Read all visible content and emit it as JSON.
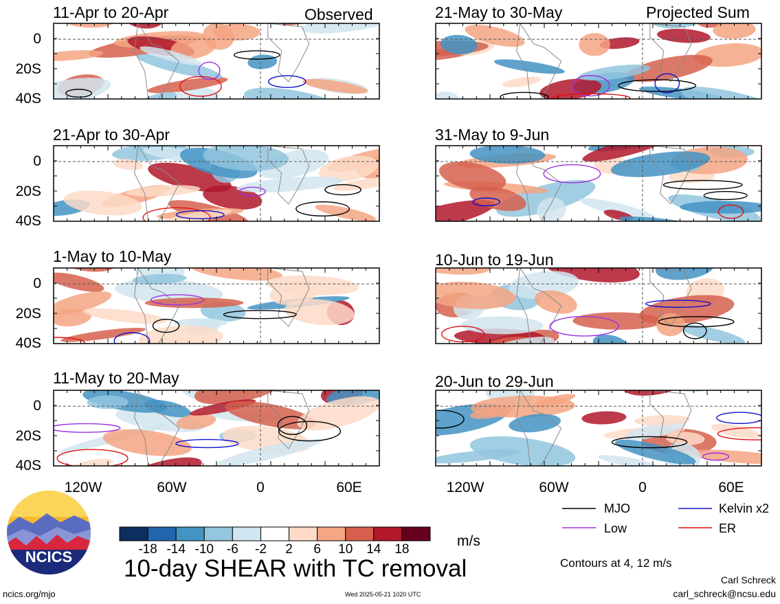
{
  "panels": [
    {
      "title": "11-Apr to 20-Apr",
      "tag": "Observed"
    },
    {
      "title": "21-Apr to 30-Apr",
      "tag": ""
    },
    {
      "title": "1-May to 10-May",
      "tag": ""
    },
    {
      "title": "11-May to 20-May",
      "tag": ""
    },
    {
      "title": "21-May to 30-May",
      "tag": "Projected Sum"
    },
    {
      "title": "31-May to 9-Jun",
      "tag": ""
    },
    {
      "title": "10-Jun to 19-Jun",
      "tag": ""
    },
    {
      "title": "20-Jun to 29-Jun",
      "tag": ""
    }
  ],
  "axes": {
    "y_ticks": [
      "0",
      "20S",
      "40S"
    ],
    "x_ticks": [
      "120W",
      "60W",
      "0",
      "60E"
    ]
  },
  "colorbar": {
    "labels": [
      "-18",
      "-14",
      "-10",
      "-6",
      "-2",
      "2",
      "6",
      "10",
      "14",
      "18"
    ],
    "colors": [
      "#0b2f5e",
      "#2166ac",
      "#4393c3",
      "#92c5de",
      "#d1e5f0",
      "#ffffff",
      "#fddbc7",
      "#f4a582",
      "#d6604d",
      "#b2182b",
      "#67001f"
    ],
    "unit": "m/s"
  },
  "legend": {
    "items": [
      {
        "label": "MJO",
        "color": "#000000"
      },
      {
        "label": "Kelvin x2",
        "color": "#1010cc"
      },
      {
        "label": "Low",
        "color": "#9b30e0"
      },
      {
        "label": "ER",
        "color": "#e01010"
      }
    ],
    "contours_note": "Contours at 4, 12 m/s"
  },
  "main_title": "10-day SHEAR with TC removal",
  "logo_text": "NCICS",
  "footer": {
    "left": "ncics.org/mjo",
    "center": "Wed 2025-05-21 1020 UTC",
    "author": "Carl Schreck",
    "email": "carl_schreck@ncsu.edu"
  }
}
